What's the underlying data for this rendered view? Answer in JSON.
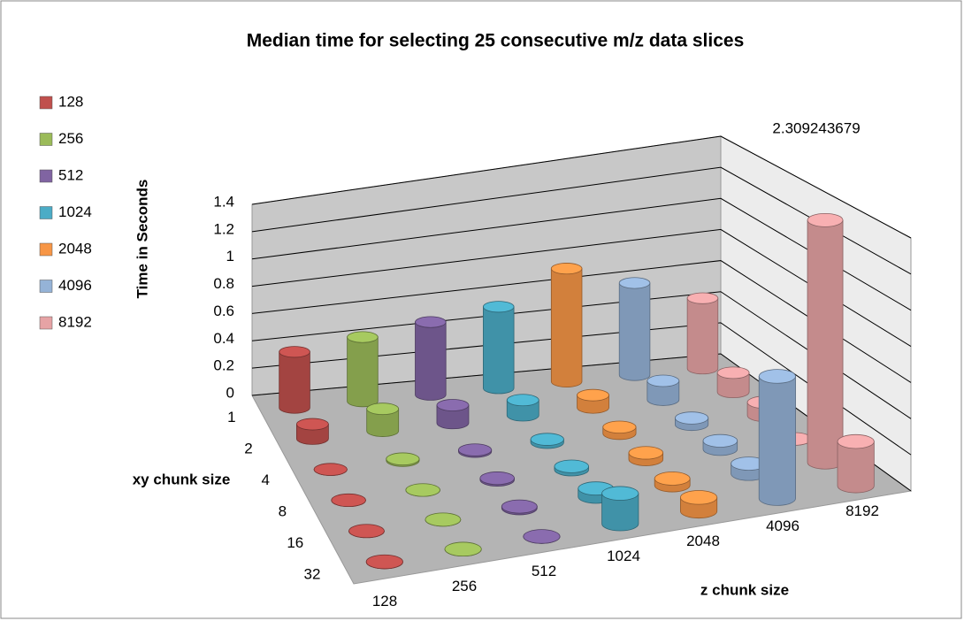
{
  "chart_data": {
    "type": "cylinder3d",
    "title": "Median time for selecting 25 consecutive m/z  data slices",
    "y_label": "Time in Seconds",
    "depth_label": "xy  chunk size",
    "x_label": "z chunk size",
    "categories": [
      "1",
      "2",
      "4",
      "8",
      "16",
      "32"
    ],
    "series": [
      {
        "name": "128",
        "color": "#c0504d",
        "values": [
          0.4,
          0.1,
          0.0,
          0.0,
          0.0,
          0.0
        ]
      },
      {
        "name": "256",
        "color": "#9bbb59",
        "values": [
          0.45,
          0.15,
          0.01,
          0.0,
          0.0,
          0.0
        ]
      },
      {
        "name": "512",
        "color": "#8064a2",
        "values": [
          0.5,
          0.12,
          0.01,
          0.01,
          0.01,
          0.0
        ]
      },
      {
        "name": "1024",
        "color": "#4bacc6",
        "values": [
          0.55,
          0.1,
          0.02,
          0.02,
          0.05,
          0.18
        ]
      },
      {
        "name": "2048",
        "color": "#f79646",
        "values": [
          0.75,
          0.08,
          0.04,
          0.04,
          0.04,
          0.08
        ]
      },
      {
        "name": "4096",
        "color": "#95b3d7",
        "values": [
          0.6,
          0.12,
          0.04,
          0.05,
          0.06,
          0.7
        ]
      },
      {
        "name": "8192",
        "color": "#e6a3a5",
        "values": [
          0.45,
          0.12,
          0.08,
          0.0,
          2.309243679,
          0.25
        ]
      }
    ],
    "ylim": [
      0,
      1.4
    ],
    "yticks": [
      0,
      0.2,
      0.4,
      0.6,
      0.8,
      1,
      1.2,
      1.4
    ],
    "grid": true,
    "legend": "left"
  }
}
